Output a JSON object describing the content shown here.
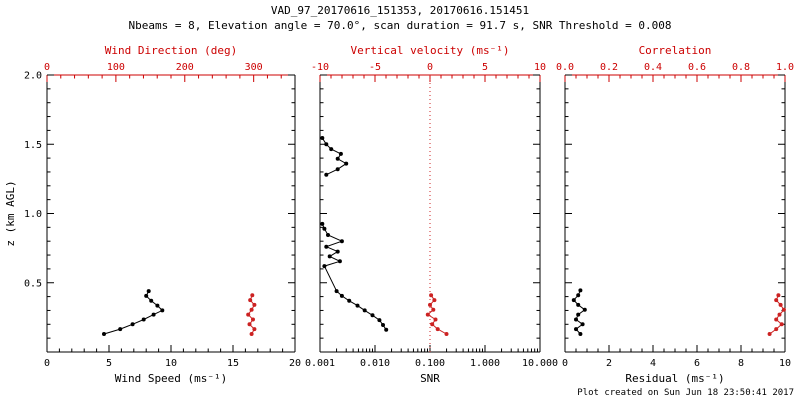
{
  "header": {
    "title": "VAD_97_20170616_151353, 20170616.151451",
    "subtitle": "Nbeams = 8, Elevation angle = 70.0°, scan duration = 91.7 s, SNR Threshold = 0.008"
  },
  "footer": {
    "created": "Plot created on Sun Jun 18 23:50:41 2017"
  },
  "colors": {
    "axis_black": "#000000",
    "accent_red": "#cc0000",
    "series_red": "#cc2222"
  },
  "chart_data": {
    "type": "line",
    "title": "VAD_97_20170616_151353, 20170616.151451",
    "grid": false,
    "y_axis": {
      "label": "z (km AGL)",
      "min": 0,
      "max": 2,
      "ticks": [
        0.5,
        1.0,
        1.5,
        2.0
      ],
      "tick_labels": [
        "0.5",
        "1.0",
        "1.5",
        "2.0"
      ],
      "minor_step": 0.1
    },
    "panels": [
      {
        "name": "wind",
        "x_bottom": {
          "title": "Wind Speed (ms⁻¹)",
          "min": 0,
          "max": 20,
          "ticks": [
            0,
            5,
            10,
            15,
            20
          ],
          "tick_labels": [
            "0",
            "5",
            "10",
            "15",
            "20"
          ],
          "minor_step": 1,
          "color": "#000000"
        },
        "x_top": {
          "title": "Wind Direction (deg)",
          "min": 0,
          "max": 360,
          "ticks": [
            0,
            100,
            200,
            300
          ],
          "tick_labels": [
            "0",
            "100",
            "200",
            "300"
          ],
          "minor_step": 20,
          "color": "#cc0000"
        },
        "series": [
          {
            "name": "wind-speed",
            "axis": "bottom",
            "color": "#000000",
            "z": [
              0.13,
              0.165,
              0.2,
              0.235,
              0.27,
              0.3,
              0.335,
              0.37,
              0.405,
              0.44
            ],
            "values": [
              4.6,
              5.9,
              6.9,
              7.8,
              8.6,
              9.3,
              8.9,
              8.4,
              8.0,
              8.2
            ]
          },
          {
            "name": "wind-direction",
            "axis": "top",
            "color": "#cc2222",
            "z": [
              0.13,
              0.165,
              0.2,
              0.235,
              0.27,
              0.305,
              0.34,
              0.375,
              0.41
            ],
            "values": [
              297,
              301,
              294,
              299,
              292,
              297,
              301,
              295,
              298
            ]
          }
        ]
      },
      {
        "name": "snr",
        "x_bottom": {
          "title": "SNR",
          "min": 0.001,
          "max": 10,
          "scale": "log",
          "ticks": [
            0.001,
            0.01,
            0.1,
            1,
            10
          ],
          "tick_labels": [
            "0.001",
            "0.010",
            "0.100",
            "1.000",
            "10.000"
          ],
          "color": "#000000"
        },
        "x_top": {
          "title": "Vertical velocity (ms⁻¹)",
          "min": -10,
          "max": 10,
          "ticks": [
            -10,
            -5,
            0,
            5,
            10
          ],
          "tick_labels": [
            "-10",
            "-5",
            "0",
            "5",
            "10"
          ],
          "minor_step": 1,
          "color": "#cc0000"
        },
        "reference_lines": [
          {
            "axis": "top",
            "value": 0,
            "color": "#cc2222",
            "style": "dotted"
          }
        ],
        "series": [
          {
            "name": "snr-lower",
            "axis": "bottom",
            "color": "#000000",
            "z": [
              0.16,
              0.195,
              0.23,
              0.265,
              0.3,
              0.335,
              0.37,
              0.405,
              0.44,
              0.62,
              0.655,
              0.69,
              0.725,
              0.76,
              0.8,
              0.845,
              0.89,
              0.925
            ],
            "values": [
              0.016,
              0.014,
              0.012,
              0.009,
              0.0065,
              0.0048,
              0.0034,
              0.0025,
              0.002,
              0.0012,
              0.0023,
              0.0015,
              0.0021,
              0.0013,
              0.0025,
              0.0014,
              0.0012,
              0.0011
            ]
          },
          {
            "name": "snr-upper",
            "axis": "bottom",
            "color": "#000000",
            "z": [
              1.28,
              1.32,
              1.36,
              1.395,
              1.43,
              1.465,
              1.5,
              1.545
            ],
            "values": [
              0.0013,
              0.0021,
              0.003,
              0.0021,
              0.0024,
              0.0016,
              0.0013,
              0.0011
            ]
          },
          {
            "name": "vertical-velocity",
            "axis": "top",
            "color": "#cc2222",
            "z": [
              0.13,
              0.165,
              0.2,
              0.235,
              0.27,
              0.305,
              0.34,
              0.375,
              0.41
            ],
            "values": [
              1.5,
              0.7,
              0.2,
              0.5,
              -0.2,
              0.3,
              0.0,
              0.4,
              0.1
            ]
          }
        ]
      },
      {
        "name": "residual",
        "x_bottom": {
          "title": "Residual (ms⁻¹)",
          "min": 0,
          "max": 10,
          "ticks": [
            0,
            2,
            4,
            6,
            8,
            10
          ],
          "tick_labels": [
            "0",
            "2",
            "4",
            "6",
            "8",
            "10"
          ],
          "minor_step": 0.5,
          "color": "#000000"
        },
        "x_top": {
          "title": "Correlation",
          "min": 0,
          "max": 1,
          "ticks": [
            0,
            0.2,
            0.4,
            0.6,
            0.8,
            1.0
          ],
          "tick_labels": [
            "0.0",
            "0.2",
            "0.4",
            "0.6",
            "0.8",
            "1.0"
          ],
          "minor_step": 0.05,
          "color": "#cc0000"
        },
        "series": [
          {
            "name": "residual",
            "axis": "bottom",
            "color": "#000000",
            "z": [
              0.13,
              0.165,
              0.2,
              0.235,
              0.27,
              0.305,
              0.34,
              0.375,
              0.41,
              0.445
            ],
            "values": [
              0.7,
              0.5,
              0.8,
              0.5,
              0.6,
              0.9,
              0.6,
              0.4,
              0.6,
              0.7
            ]
          },
          {
            "name": "correlation",
            "axis": "top",
            "color": "#cc2222",
            "z": [
              0.13,
              0.165,
              0.2,
              0.235,
              0.27,
              0.305,
              0.34,
              0.375,
              0.41
            ],
            "values": [
              0.93,
              0.96,
              0.985,
              0.96,
              0.975,
              0.995,
              0.98,
              0.96,
              0.97
            ]
          }
        ]
      }
    ]
  }
}
